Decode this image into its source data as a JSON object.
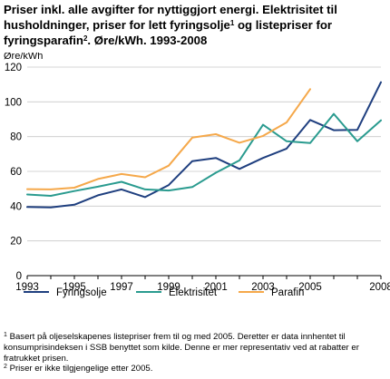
{
  "title": {
    "line1": "Priser inkl. alle avgifter for nyttiggjort energi. Elektrisitet til",
    "line2a": "husholdninger, priser for lett fyringsolje",
    "mark1": "1",
    "line2b": " og listepriser for",
    "line3a": "fyringsparafin",
    "mark2": "2",
    "line3b": ". Øre/kWh. 1993-2008"
  },
  "chart_data": {
    "type": "line",
    "ylabel": "Øre/kWh",
    "ylim": [
      0,
      120
    ],
    "yticks": [
      "0",
      "20",
      "40",
      "60",
      "80",
      "100",
      "120"
    ],
    "xlim": [
      1993,
      2008
    ],
    "xticks": [
      "1993",
      "1995",
      "1997",
      "1999",
      "2001",
      "2003",
      "2005",
      "2008"
    ],
    "grid": true,
    "legend": "bottom",
    "series": [
      {
        "name": "Fyringsolje",
        "color": "#1f3f7f",
        "x": [
          1993,
          1994,
          1995,
          1996,
          1997,
          1998,
          1999,
          2000,
          2001,
          2002,
          2003,
          2004,
          2005,
          2006,
          2007,
          2008
        ],
        "values": [
          39.5,
          39.3,
          40.8,
          46.2,
          49.6,
          45.2,
          52.1,
          65.9,
          67.7,
          61.4,
          67.7,
          73.1,
          89.6,
          83.7,
          83.9,
          111.3
        ]
      },
      {
        "name": "Elektrisitet",
        "color": "#2a9b8f",
        "x": [
          1993,
          1994,
          1995,
          1996,
          1997,
          1998,
          1999,
          2000,
          2001,
          2002,
          2003,
          2004,
          2005,
          2006,
          2007,
          2008
        ],
        "values": [
          46.7,
          45.9,
          48.7,
          51.2,
          54.0,
          49.6,
          49.0,
          51.0,
          59.2,
          66.3,
          86.8,
          77.3,
          76.3,
          93.1,
          77.3,
          89.4
        ]
      },
      {
        "name": "Parafin",
        "color": "#f5a84a",
        "x": [
          1993,
          1994,
          1995,
          1996,
          1997,
          1998,
          1999,
          2000,
          2001,
          2002,
          2003,
          2004,
          2005
        ],
        "values": [
          49.8,
          49.6,
          50.6,
          55.6,
          58.5,
          56.6,
          63.3,
          79.4,
          81.4,
          76.5,
          80.4,
          88.2,
          107.3
        ]
      }
    ]
  },
  "footnotes": [
    {
      "mark": "1",
      "text": " Basert på oljeselskapenes listepriser frem til og med 2005. Deretter er data innhentet til konsumprisindeksen i SSB benyttet som kilde. Denne er mer representativ ved at rabatter er fratrukket prisen."
    },
    {
      "mark": "2",
      "text": " Priser er ikke tilgjengelige etter 2005."
    }
  ]
}
